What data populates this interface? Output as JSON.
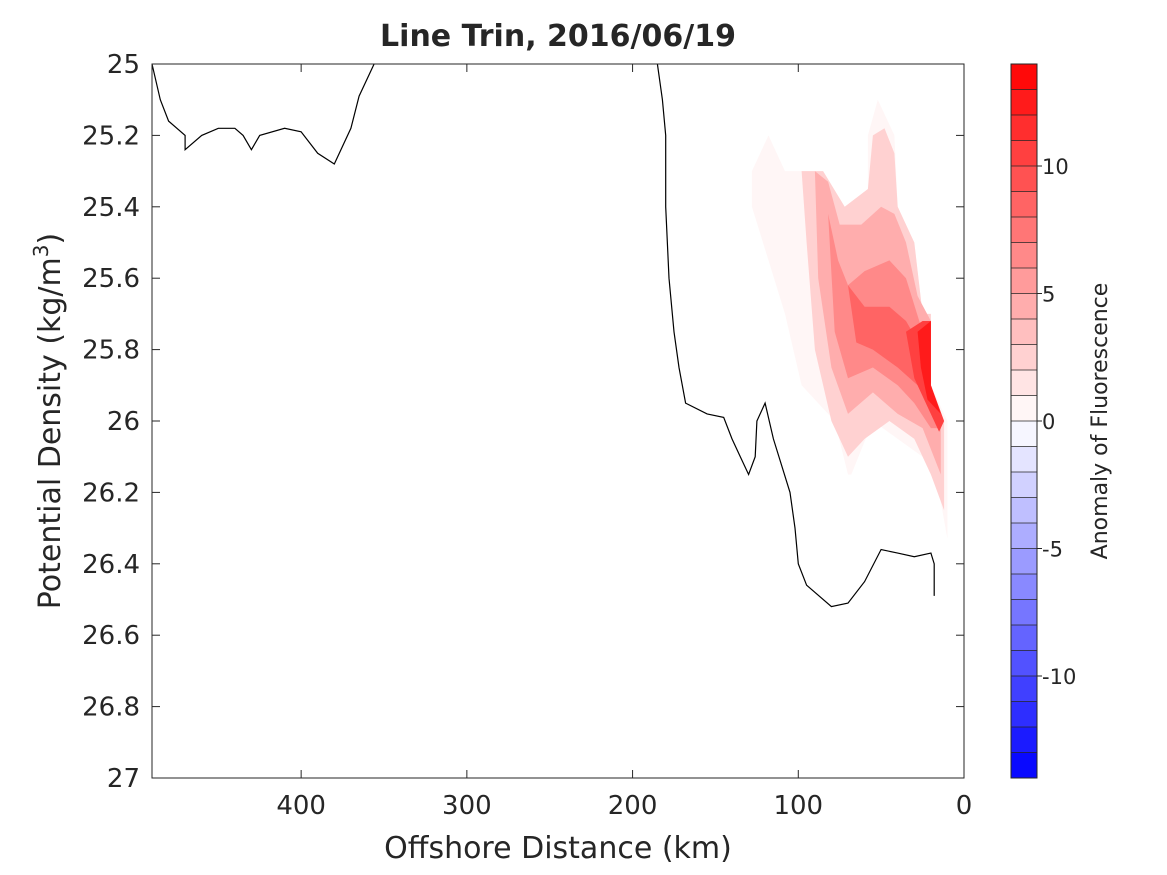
{
  "chart_data": {
    "type": "contour",
    "title": "Line Trin, 2016/06/19",
    "xlabel": "Offshore Distance (km)",
    "ylabel": "Potential Density (kg/m",
    "ylabel_sup": "3",
    "ylabel_close": ")",
    "xlim": [
      490,
      0
    ],
    "ylim": [
      25,
      27
    ],
    "x_direction": "reversed",
    "y_direction": "reversed",
    "x_ticks": [
      400,
      300,
      200,
      100,
      0
    ],
    "x_tick_labels": [
      "400",
      "300",
      "200",
      "100",
      "0"
    ],
    "y_ticks": [
      25,
      25.2,
      25.4,
      25.6,
      25.8,
      26,
      26.2,
      26.4,
      26.6,
      26.8,
      27
    ],
    "y_tick_labels": [
      "25",
      "25.2",
      "25.4",
      "25.6",
      "25.8",
      "26",
      "26.2",
      "26.4",
      "26.6",
      "26.8",
      "27"
    ],
    "grid": false,
    "colorbar": {
      "label": "Anomaly of Fluorescence",
      "range": [
        -14,
        14
      ],
      "step": 1,
      "ticks": [
        10,
        5,
        0,
        -5,
        -10
      ],
      "tick_labels": [
        "10",
        "5",
        "0",
        "-5",
        "-10"
      ],
      "min_color": "#0000ff",
      "zero_color": "#ffffff",
      "max_color": "#ff0000"
    },
    "zero_contour_lines": [
      [
        [
          490,
          25.0
        ],
        [
          485,
          25.1
        ],
        [
          480,
          25.16
        ],
        [
          470,
          25.2
        ],
        [
          470,
          25.24
        ],
        [
          460,
          25.2
        ],
        [
          450,
          25.18
        ],
        [
          440,
          25.18
        ],
        [
          435,
          25.2
        ],
        [
          430,
          25.24
        ],
        [
          425,
          25.2
        ],
        [
          410,
          25.18
        ],
        [
          400,
          25.19
        ],
        [
          390,
          25.25
        ],
        [
          380,
          25.28
        ],
        [
          370,
          25.18
        ],
        [
          365,
          25.09
        ],
        [
          356,
          25.0
        ]
      ],
      [
        [
          185,
          25.0
        ],
        [
          182,
          25.1
        ],
        [
          180,
          25.2
        ],
        [
          180,
          25.4
        ],
        [
          178,
          25.6
        ],
        [
          175,
          25.75
        ],
        [
          172,
          25.85
        ],
        [
          168,
          25.95
        ],
        [
          155,
          25.98
        ],
        [
          145,
          25.99
        ],
        [
          140,
          26.05
        ],
        [
          135,
          26.1
        ],
        [
          130,
          26.15
        ],
        [
          126,
          26.1
        ],
        [
          125,
          26.0
        ],
        [
          120,
          25.95
        ],
        [
          115,
          26.05
        ],
        [
          105,
          26.2
        ],
        [
          102,
          26.3
        ],
        [
          100,
          26.4
        ],
        [
          95,
          26.46
        ],
        [
          80,
          26.52
        ],
        [
          70,
          26.51
        ],
        [
          60,
          26.45
        ],
        [
          50,
          26.36
        ],
        [
          40,
          26.37
        ],
        [
          30,
          26.38
        ],
        [
          20,
          26.37
        ],
        [
          18,
          26.4
        ],
        [
          18,
          26.49
        ]
      ],
      [
        [
          112,
          25.0
        ],
        [
          109,
          24.99
        ]
      ]
    ],
    "positive_anomaly_regions": [
      {
        "level": 1,
        "polygon": [
          [
            128,
            25.3
          ],
          [
            118,
            25.2
          ],
          [
            108,
            25.3
          ],
          [
            100,
            25.3
          ],
          [
            95,
            25.3
          ],
          [
            85,
            25.3
          ],
          [
            72,
            25.4
          ],
          [
            58,
            25.35
          ],
          [
            58,
            25.2
          ],
          [
            52,
            25.1
          ],
          [
            42,
            25.2
          ],
          [
            40,
            25.4
          ],
          [
            30,
            25.5
          ],
          [
            25,
            25.7
          ],
          [
            20,
            25.7
          ],
          [
            20,
            25.9
          ],
          [
            10,
            26.0
          ],
          [
            10,
            26.33
          ],
          [
            15,
            26.2
          ],
          [
            25,
            26.1
          ],
          [
            40,
            26.05
          ],
          [
            55,
            26.0
          ],
          [
            68,
            26.15
          ],
          [
            70,
            26.15
          ],
          [
            78,
            26.0
          ],
          [
            98,
            25.9
          ],
          [
            108,
            25.7
          ],
          [
            118,
            25.55
          ],
          [
            128,
            25.4
          ]
        ]
      },
      {
        "level": 3,
        "polygon": [
          [
            98,
            25.3
          ],
          [
            85,
            25.3
          ],
          [
            72,
            25.4
          ],
          [
            58,
            25.35
          ],
          [
            55,
            25.2
          ],
          [
            48,
            25.18
          ],
          [
            42,
            25.25
          ],
          [
            40,
            25.4
          ],
          [
            30,
            25.5
          ],
          [
            25,
            25.7
          ],
          [
            20,
            25.7
          ],
          [
            20,
            25.9
          ],
          [
            12,
            26.0
          ],
          [
            12,
            26.25
          ],
          [
            20,
            26.15
          ],
          [
            30,
            26.05
          ],
          [
            45,
            26.0
          ],
          [
            60,
            26.05
          ],
          [
            70,
            26.1
          ],
          [
            80,
            26.0
          ],
          [
            90,
            25.8
          ],
          [
            95,
            25.5
          ]
        ]
      },
      {
        "level": 5,
        "polygon": [
          [
            90,
            25.3
          ],
          [
            82,
            25.33
          ],
          [
            75,
            25.45
          ],
          [
            62,
            25.45
          ],
          [
            50,
            25.4
          ],
          [
            42,
            25.42
          ],
          [
            35,
            25.5
          ],
          [
            28,
            25.65
          ],
          [
            20,
            25.72
          ],
          [
            20,
            25.9
          ],
          [
            14,
            26.0
          ],
          [
            14,
            26.15
          ],
          [
            25,
            26.02
          ],
          [
            40,
            25.98
          ],
          [
            55,
            25.92
          ],
          [
            70,
            25.98
          ],
          [
            80,
            25.85
          ],
          [
            88,
            25.6
          ]
        ]
      },
      {
        "level": 7,
        "polygon": [
          [
            82,
            25.42
          ],
          [
            76,
            25.55
          ],
          [
            70,
            25.62
          ],
          [
            60,
            25.58
          ],
          [
            45,
            25.55
          ],
          [
            35,
            25.6
          ],
          [
            25,
            25.75
          ],
          [
            20,
            25.8
          ],
          [
            20,
            25.92
          ],
          [
            15,
            26.02
          ],
          [
            20,
            26.02
          ],
          [
            30,
            25.95
          ],
          [
            40,
            25.9
          ],
          [
            55,
            25.85
          ],
          [
            70,
            25.88
          ],
          [
            78,
            25.75
          ]
        ]
      },
      {
        "level": 9,
        "polygon": [
          [
            70,
            25.62
          ],
          [
            60,
            25.68
          ],
          [
            45,
            25.68
          ],
          [
            35,
            25.72
          ],
          [
            25,
            25.8
          ],
          [
            20,
            25.85
          ],
          [
            20,
            25.93
          ],
          [
            28,
            25.9
          ],
          [
            40,
            25.85
          ],
          [
            55,
            25.8
          ],
          [
            65,
            25.78
          ]
        ]
      },
      {
        "level": 11,
        "polygon": [
          [
            35,
            25.75
          ],
          [
            25,
            25.72
          ],
          [
            20,
            25.72
          ],
          [
            20,
            25.9
          ],
          [
            12,
            26.0
          ],
          [
            15,
            26.03
          ],
          [
            22,
            25.96
          ],
          [
            30,
            25.88
          ]
        ]
      },
      {
        "level": 13,
        "polygon": [
          [
            28,
            25.75
          ],
          [
            20,
            25.72
          ],
          [
            20,
            25.9
          ],
          [
            14,
            25.98
          ],
          [
            22,
            25.94
          ],
          [
            26,
            25.85
          ]
        ]
      }
    ]
  }
}
